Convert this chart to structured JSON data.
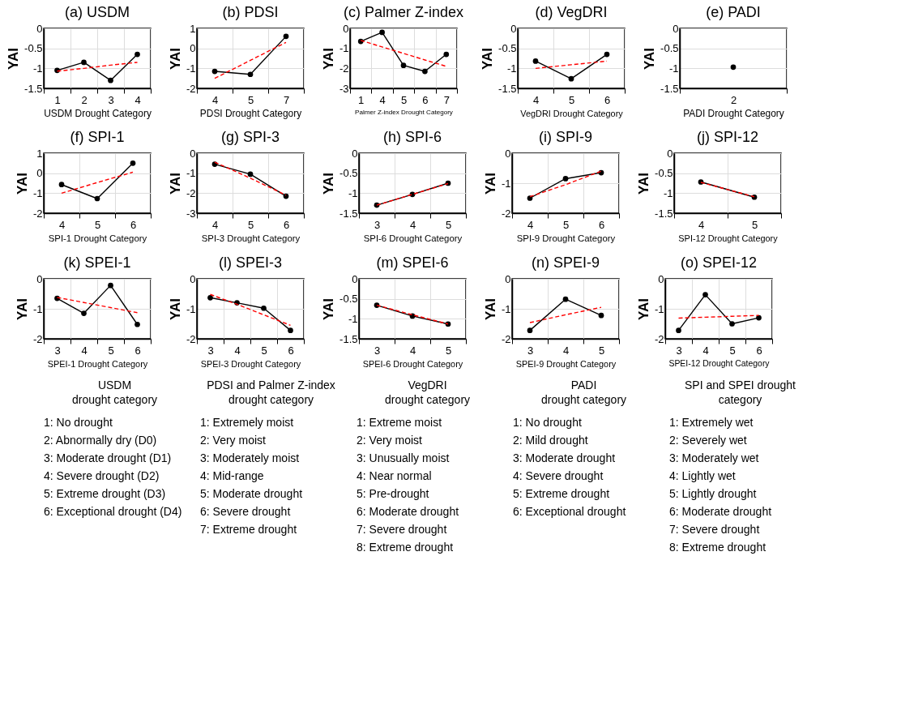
{
  "chart_data": [
    {
      "type": "line",
      "title": "(a) USDM",
      "xlabel": "USDM Drought Category",
      "ylabel": "YAI",
      "categories": [
        "1",
        "2",
        "3",
        "4"
      ],
      "ylim": [
        -1.5,
        0
      ],
      "yticks": [
        -1.5,
        -1,
        -0.5,
        0
      ],
      "grid": true,
      "marker": "circle",
      "series": [
        {
          "color": "#000000",
          "values": [
            -1.05,
            -0.85,
            -1.3,
            -0.65
          ]
        },
        {
          "color": "#ff0000",
          "values": [
            -1.07,
            -1.0,
            -0.92,
            -0.85
          ],
          "line_style": "dashed",
          "marker": "none"
        }
      ]
    },
    {
      "type": "line",
      "title": "(b) PDSI",
      "xlabel": "PDSI Drought Category",
      "ylabel": "YAI",
      "categories": [
        "4",
        "5",
        "7"
      ],
      "ylim": [
        -2,
        1
      ],
      "yticks": [
        -2,
        -1,
        0,
        1
      ],
      "grid": true,
      "marker": "circle",
      "series": [
        {
          "color": "#000000",
          "values": [
            -1.15,
            -1.3,
            0.6
          ]
        },
        {
          "color": "#ff0000",
          "values": [
            -1.5,
            -0.6,
            0.3
          ],
          "line_style": "dashed",
          "marker": "none"
        }
      ]
    },
    {
      "type": "line",
      "title": "(c) Palmer Z-index",
      "xlabel": "Palmer Z-index Drought Category",
      "ylabel": "YAI",
      "categories": [
        "1",
        "4",
        "5",
        "6",
        "7"
      ],
      "ylim": [
        -3,
        0
      ],
      "yticks": [
        -3,
        -2,
        -1,
        0
      ],
      "grid": true,
      "marker": "circle",
      "series": [
        {
          "color": "#000000",
          "values": [
            -0.65,
            -0.2,
            -1.85,
            -2.15,
            -1.3
          ]
        },
        {
          "color": "#ff0000",
          "values": [
            -0.6,
            -0.93,
            -1.25,
            -1.58,
            -1.9
          ],
          "line_style": "dashed",
          "marker": "none"
        }
      ]
    },
    {
      "type": "line",
      "title": "(d) VegDRI",
      "xlabel": "VegDRI Drought Category",
      "ylabel": "YAI",
      "categories": [
        "4",
        "5",
        "6"
      ],
      "ylim": [
        -1.5,
        0
      ],
      "yticks": [
        -1.5,
        -1,
        -0.5,
        0
      ],
      "grid": true,
      "marker": "circle",
      "series": [
        {
          "color": "#000000",
          "values": [
            -0.82,
            -1.26,
            -0.65
          ]
        },
        {
          "color": "#ff0000",
          "values": [
            -1.0,
            -0.91,
            -0.82
          ],
          "line_style": "dashed",
          "marker": "none"
        }
      ]
    },
    {
      "type": "line",
      "title": "(e) PADI",
      "xlabel": "PADI Drought Category",
      "ylabel": "YAI",
      "categories": [
        "2"
      ],
      "ylim": [
        -1.5,
        0
      ],
      "yticks": [
        -1.5,
        -1,
        -0.5,
        0
      ],
      "grid": true,
      "marker": "circle",
      "series": [
        {
          "color": "#000000",
          "values": [
            -0.97
          ]
        }
      ]
    },
    {
      "type": "line",
      "title": "(f) SPI-1",
      "xlabel": "SPI-1 Drought Category",
      "ylabel": "YAI",
      "categories": [
        "4",
        "5",
        "6"
      ],
      "ylim": [
        -2,
        1
      ],
      "yticks": [
        -2,
        -1,
        0,
        1
      ],
      "grid": true,
      "marker": "circle",
      "series": [
        {
          "color": "#000000",
          "values": [
            -0.57,
            -1.27,
            0.5
          ]
        },
        {
          "color": "#ff0000",
          "values": [
            -1.0,
            -0.47,
            0.05
          ],
          "line_style": "dashed",
          "marker": "none"
        }
      ]
    },
    {
      "type": "line",
      "title": "(g) SPI-3",
      "xlabel": "SPI-3 Drought Category",
      "ylabel": "YAI",
      "categories": [
        "4",
        "5",
        "6"
      ],
      "ylim": [
        -3,
        0
      ],
      "yticks": [
        -3,
        -2,
        -1,
        0
      ],
      "grid": true,
      "marker": "circle",
      "series": [
        {
          "color": "#000000",
          "values": [
            -0.55,
            -1.05,
            -2.15
          ]
        },
        {
          "color": "#ff0000",
          "values": [
            -0.45,
            -1.25,
            -2.1
          ],
          "line_style": "dashed",
          "marker": "none"
        }
      ]
    },
    {
      "type": "line",
      "title": "(h) SPI-6",
      "xlabel": "SPI-6 Drought Category",
      "ylabel": "YAI",
      "categories": [
        "3",
        "4",
        "5"
      ],
      "ylim": [
        -1.5,
        0
      ],
      "yticks": [
        -1.5,
        -1,
        -0.5,
        0
      ],
      "grid": true,
      "marker": "circle",
      "series": [
        {
          "color": "#000000",
          "values": [
            -1.3,
            -1.03,
            -0.75
          ]
        },
        {
          "color": "#ff0000",
          "values": [
            -1.3,
            -1.03,
            -0.76
          ],
          "line_style": "dashed",
          "marker": "none"
        }
      ]
    },
    {
      "type": "line",
      "title": "(i) SPI-9",
      "xlabel": "SPI-9 Drought Category",
      "ylabel": "YAI",
      "categories": [
        "4",
        "5",
        "6"
      ],
      "ylim": [
        -2,
        0
      ],
      "yticks": [
        -2,
        -1,
        0
      ],
      "grid": true,
      "marker": "circle",
      "series": [
        {
          "color": "#000000",
          "values": [
            -1.5,
            -0.85,
            -0.65
          ]
        },
        {
          "color": "#ff0000",
          "values": [
            -1.45,
            -1.05,
            -0.6
          ],
          "line_style": "dashed",
          "marker": "none"
        }
      ]
    },
    {
      "type": "line",
      "title": "(j) SPI-12",
      "xlabel": "SPI-12 Drought Category",
      "ylabel": "YAI",
      "categories": [
        "4",
        "5"
      ],
      "ylim": [
        -1.5,
        0
      ],
      "yticks": [
        -1.5,
        -1,
        -0.5,
        0
      ],
      "grid": true,
      "marker": "circle",
      "series": [
        {
          "color": "#000000",
          "values": [
            -0.72,
            -1.1
          ]
        },
        {
          "color": "#ff0000",
          "values": [
            -0.73,
            -1.09
          ],
          "line_style": "dashed",
          "marker": "none"
        }
      ]
    },
    {
      "type": "line",
      "title": "(k) SPEI-1",
      "xlabel": "SPEI-1 Drought Category",
      "ylabel": "YAI",
      "categories": [
        "3",
        "4",
        "5",
        "6"
      ],
      "ylim": [
        -2,
        0
      ],
      "yticks": [
        -2,
        -1,
        0
      ],
      "grid": true,
      "marker": "circle",
      "series": [
        {
          "color": "#000000",
          "values": [
            -0.65,
            -1.15,
            -0.22,
            -1.52
          ]
        },
        {
          "color": "#ff0000",
          "values": [
            -0.62,
            -0.79,
            -0.96,
            -1.13
          ],
          "line_style": "dashed",
          "marker": "none"
        }
      ]
    },
    {
      "type": "line",
      "title": "(l) SPEI-3",
      "xlabel": "SPEI-3 Drought Category",
      "ylabel": "YAI",
      "categories": [
        "3",
        "4",
        "5",
        "6"
      ],
      "ylim": [
        -2,
        0
      ],
      "yticks": [
        -2,
        -1,
        0
      ],
      "grid": true,
      "marker": "circle",
      "series": [
        {
          "color": "#000000",
          "values": [
            -0.63,
            -0.8,
            -0.98,
            -1.72
          ]
        },
        {
          "color": "#ff0000",
          "values": [
            -0.52,
            -0.85,
            -1.2,
            -1.55
          ],
          "line_style": "dashed",
          "marker": "none"
        }
      ]
    },
    {
      "type": "line",
      "title": "(m) SPEI-6",
      "xlabel": "SPEI-6 Drought Category",
      "ylabel": "YAI",
      "categories": [
        "3",
        "4",
        "5"
      ],
      "ylim": [
        -1.5,
        0
      ],
      "yticks": [
        -1.5,
        -1,
        -0.5,
        0
      ],
      "grid": true,
      "marker": "circle",
      "series": [
        {
          "color": "#000000",
          "values": [
            -0.66,
            -0.93,
            -1.13
          ]
        },
        {
          "color": "#ff0000",
          "values": [
            -0.66,
            -0.9,
            -1.13
          ],
          "line_style": "dashed",
          "marker": "none"
        }
      ]
    },
    {
      "type": "line",
      "title": "(n) SPEI-9",
      "xlabel": "SPEI-9 Drought Category",
      "ylabel": "YAI",
      "categories": [
        "3",
        "4",
        "5"
      ],
      "ylim": [
        -2,
        0
      ],
      "yticks": [
        -2,
        -1,
        0
      ],
      "grid": true,
      "marker": "circle",
      "series": [
        {
          "color": "#000000",
          "values": [
            -1.72,
            -0.68,
            -1.22
          ]
        },
        {
          "color": "#ff0000",
          "values": [
            -1.46,
            -1.2,
            -0.95
          ],
          "line_style": "dashed",
          "marker": "none"
        }
      ]
    },
    {
      "type": "line",
      "title": "(o) SPEI-12",
      "xlabel": "SPEI-12 Drought Category",
      "ylabel": "YAI",
      "categories": [
        "3",
        "4",
        "5",
        "6"
      ],
      "ylim": [
        -2,
        0
      ],
      "yticks": [
        -2,
        -1,
        0
      ],
      "grid": true,
      "marker": "circle",
      "series": [
        {
          "color": "#000000",
          "values": [
            -1.72,
            -0.53,
            -1.5,
            -1.3
          ]
        },
        {
          "color": "#ff0000",
          "values": [
            -1.31,
            -1.28,
            -1.25,
            -1.22
          ],
          "line_style": "dashed",
          "marker": "none"
        }
      ]
    },
    {
      "type": "other",
      "title": "USDM\ndrought category",
      "annotations": [
        "1: No drought",
        "2: Abnormally dry (D0)",
        "3: Moderate drought (D1)",
        "4: Severe drought (D2)",
        "5: Extreme drought (D3)",
        "6: Exceptional drought (D4)"
      ]
    },
    {
      "type": "other",
      "title": "PDSI and Palmer Z-index\ndrought category",
      "annotations": [
        "1: Extremely moist",
        "2: Very moist",
        "3: Moderately moist",
        "4: Mid-range",
        "5: Moderate drought",
        "6: Severe drought",
        "7: Extreme drought"
      ]
    },
    {
      "type": "other",
      "title": "VegDRI\ndrought category",
      "annotations": [
        "1: Extreme moist",
        "2: Very moist",
        "3: Unusually moist",
        "4: Near normal",
        "5: Pre-drought",
        "6: Moderate drought",
        "7: Severe drought",
        "8: Extreme drought"
      ]
    },
    {
      "type": "other",
      "title": "PADI\ndrought category",
      "annotations": [
        "1: No drought",
        "2: Mild drought",
        "3: Moderate drought",
        "4: Severe drought",
        "5: Extreme drought",
        "6: Exceptional drought"
      ]
    },
    {
      "type": "other",
      "title": "SPI and SPEI drought\ncategory",
      "annotations": [
        "1: Extremely wet",
        "2: Severely wet",
        "3: Moderately wet",
        "4: Lightly wet",
        "5: Lightly drought",
        "6: Moderate drought",
        "7: Severe drought",
        "8: Extreme drought"
      ]
    }
  ]
}
